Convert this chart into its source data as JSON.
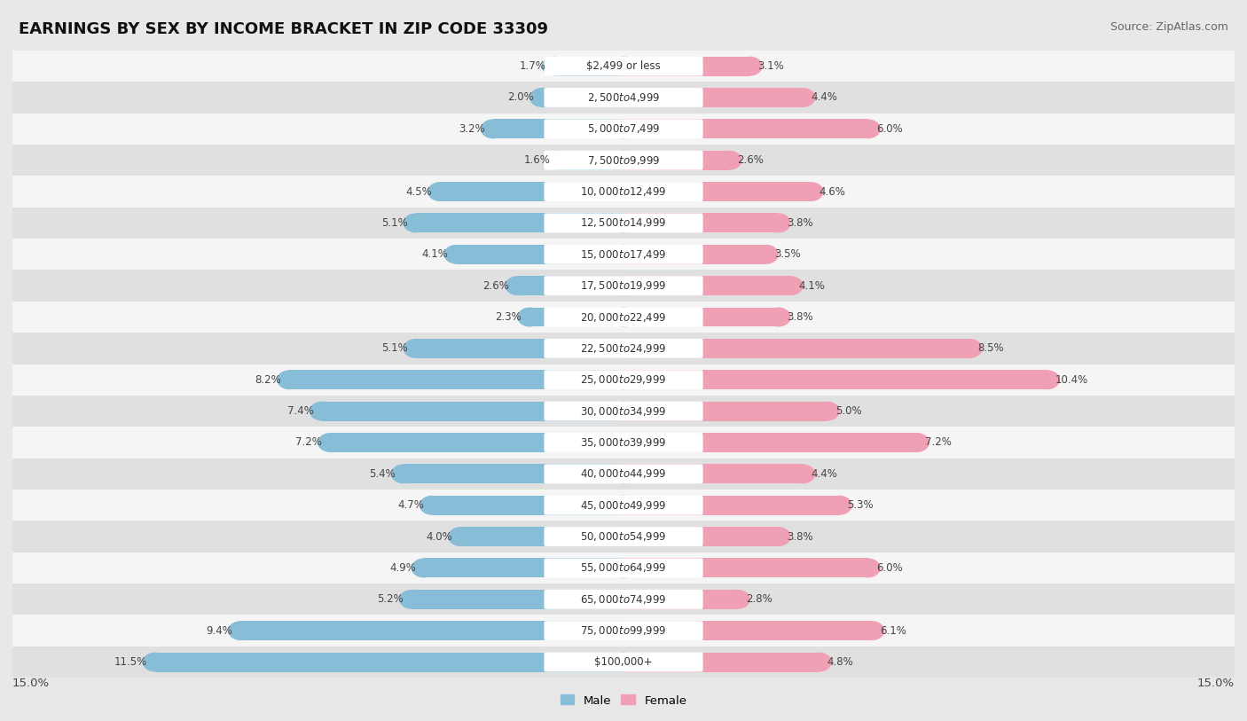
{
  "title": "EARNINGS BY SEX BY INCOME BRACKET IN ZIP CODE 33309",
  "source": "Source: ZipAtlas.com",
  "categories": [
    "$2,499 or less",
    "$2,500 to $4,999",
    "$5,000 to $7,499",
    "$7,500 to $9,999",
    "$10,000 to $12,499",
    "$12,500 to $14,999",
    "$15,000 to $17,499",
    "$17,500 to $19,999",
    "$20,000 to $22,499",
    "$22,500 to $24,999",
    "$25,000 to $29,999",
    "$30,000 to $34,999",
    "$35,000 to $39,999",
    "$40,000 to $44,999",
    "$45,000 to $49,999",
    "$50,000 to $54,999",
    "$55,000 to $64,999",
    "$65,000 to $74,999",
    "$75,000 to $99,999",
    "$100,000+"
  ],
  "male_values": [
    1.7,
    2.0,
    3.2,
    1.6,
    4.5,
    5.1,
    4.1,
    2.6,
    2.3,
    5.1,
    8.2,
    7.4,
    7.2,
    5.4,
    4.7,
    4.0,
    4.9,
    5.2,
    9.4,
    11.5
  ],
  "female_values": [
    3.1,
    4.4,
    6.0,
    2.6,
    4.6,
    3.8,
    3.5,
    4.1,
    3.8,
    8.5,
    10.4,
    5.0,
    7.2,
    4.4,
    5.3,
    3.8,
    6.0,
    2.8,
    6.1,
    4.8
  ],
  "male_color": "#88bdd8",
  "female_color": "#f0a0b4",
  "xlim": 15.0,
  "bg_color": "#e8e8e8",
  "row_light": "#f5f5f5",
  "row_dark": "#e0e0e0",
  "title_fontsize": 13,
  "source_fontsize": 9,
  "label_fontsize": 8.5,
  "value_fontsize": 8.5
}
